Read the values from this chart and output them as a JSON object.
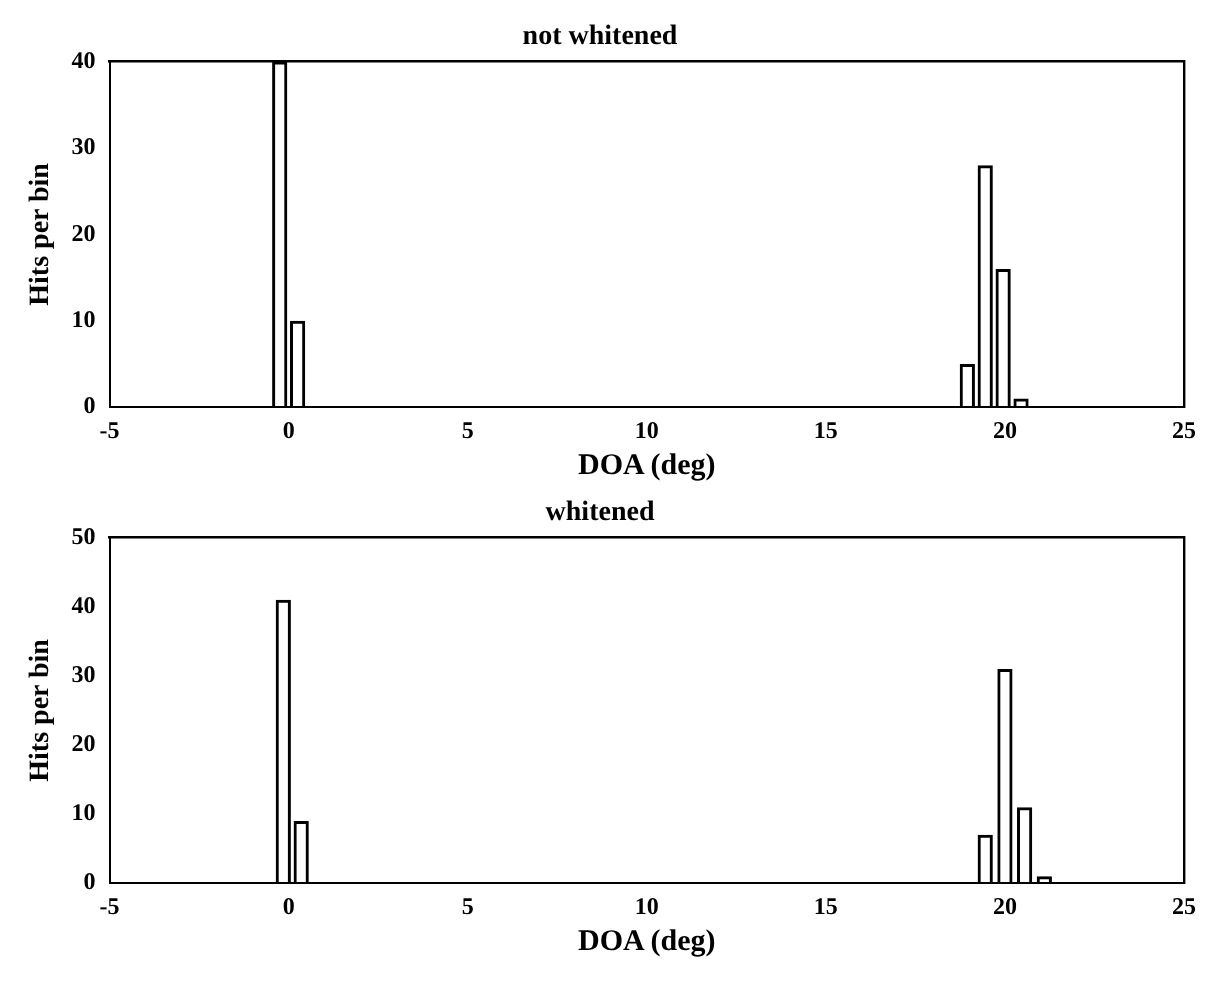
{
  "chart_data": [
    {
      "type": "bar",
      "title": "not whitened",
      "xlabel": "DOA (deg)",
      "ylabel": "Hits per bin",
      "x": [
        -0.25,
        0.25,
        18.95,
        19.45,
        19.95,
        20.45
      ],
      "values": [
        40,
        10,
        5,
        28,
        16,
        1
      ],
      "color": "#000000",
      "xlim": [
        -5,
        25
      ],
      "xticks": [
        -5,
        0,
        5,
        10,
        15,
        20,
        25
      ],
      "ylim": [
        0,
        40
      ],
      "yticks": [
        0,
        10,
        20,
        30,
        40
      ],
      "grid": false,
      "legend": false
    },
    {
      "type": "bar",
      "title": "whitened",
      "xlabel": "DOA (deg)",
      "ylabel": "Hits per bin",
      "x": [
        -0.15,
        0.35,
        19.45,
        20.0,
        20.55,
        21.1
      ],
      "values": [
        41,
        9,
        7,
        31,
        11,
        1
      ],
      "color": "#000000",
      "xlim": [
        -5,
        25
      ],
      "xticks": [
        -5,
        0,
        5,
        10,
        15,
        20,
        25
      ],
      "ylim": [
        0,
        50
      ],
      "yticks": [
        0,
        10,
        20,
        30,
        40,
        50
      ],
      "grid": false,
      "legend": false
    }
  ]
}
